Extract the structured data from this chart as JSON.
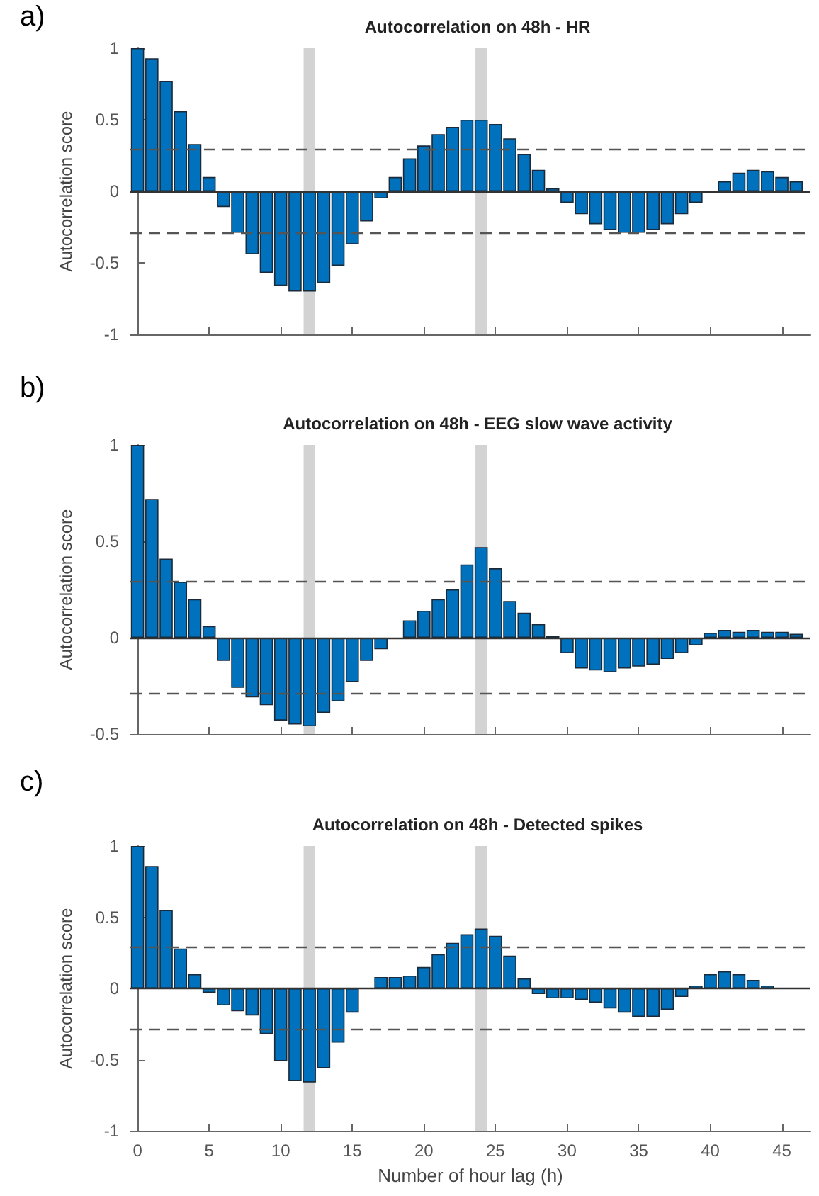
{
  "chart_data": [
    {
      "type": "bar",
      "title": "Autocorrelation on 48h - HR",
      "ylabel": "Autocorrelation score",
      "annotations": [
        "a)"
      ],
      "color": "#0072bd",
      "tick_labels": "y",
      "x": [
        0,
        1,
        2,
        3,
        4,
        5,
        6,
        7,
        8,
        9,
        10,
        11,
        12,
        13,
        14,
        15,
        16,
        17,
        18,
        19,
        20,
        21,
        22,
        23,
        24,
        25,
        26,
        27,
        28,
        29,
        30,
        31,
        32,
        33,
        34,
        35,
        36,
        37,
        38,
        39,
        40,
        41,
        42,
        43,
        44,
        45,
        46
      ],
      "values": [
        1.0,
        0.93,
        0.77,
        0.56,
        0.33,
        0.1,
        -0.11,
        -0.29,
        -0.44,
        -0.57,
        -0.66,
        -0.7,
        -0.7,
        -0.64,
        -0.52,
        -0.37,
        -0.21,
        -0.05,
        0.1,
        0.23,
        0.32,
        0.4,
        0.45,
        0.5,
        0.5,
        0.47,
        0.37,
        0.26,
        0.15,
        0.02,
        -0.08,
        -0.16,
        -0.23,
        -0.27,
        -0.29,
        -0.29,
        -0.27,
        -0.23,
        -0.16,
        -0.08,
        0,
        0.07,
        0.13,
        0.15,
        0.14,
        0.1,
        0.07
      ],
      "xlim": [
        -0.5,
        47
      ],
      "xticks": [
        0,
        5,
        10,
        15,
        20,
        25,
        30,
        35,
        40,
        45
      ],
      "ylim": [
        -1,
        1
      ],
      "yticks": [
        -1,
        -0.5,
        0,
        0.5,
        1
      ],
      "ref_lines": [
        {
          "axis": "y",
          "value": 0,
          "line_style": "solid",
          "color": "#333333"
        },
        {
          "axis": "y",
          "value": 0.29,
          "line_style": "dashed",
          "color": "#555555"
        },
        {
          "axis": "y",
          "value": -0.29,
          "line_style": "dashed",
          "color": "#555555"
        }
      ],
      "bands": [
        {
          "axis": "x",
          "from": 11.6,
          "to": 12.4,
          "color": "#d3d3d3"
        },
        {
          "axis": "x",
          "from": 23.6,
          "to": 24.4,
          "color": "#d3d3d3"
        }
      ]
    },
    {
      "type": "bar",
      "title": "Autocorrelation on 48h - EEG slow wave activity",
      "ylabel": "Autocorrelation score",
      "annotations": [
        "b)"
      ],
      "color": "#0072bd",
      "tick_labels": "y",
      "x": [
        0,
        1,
        2,
        3,
        4,
        5,
        6,
        7,
        8,
        9,
        10,
        11,
        12,
        13,
        14,
        15,
        16,
        17,
        18,
        19,
        20,
        21,
        22,
        23,
        24,
        25,
        26,
        27,
        28,
        29,
        30,
        31,
        32,
        33,
        34,
        35,
        36,
        37,
        38,
        39,
        40,
        41,
        42,
        43,
        44,
        45,
        46
      ],
      "values": [
        1.0,
        0.72,
        0.41,
        0.29,
        0.2,
        0.06,
        -0.12,
        -0.26,
        -0.31,
        -0.35,
        -0.43,
        -0.45,
        -0.46,
        -0.39,
        -0.33,
        -0.23,
        -0.12,
        -0.06,
        0,
        0.09,
        0.14,
        0.2,
        0.25,
        0.38,
        0.47,
        0.36,
        0.19,
        0.13,
        0.07,
        0.01,
        -0.08,
        -0.16,
        -0.17,
        -0.18,
        -0.16,
        -0.15,
        -0.14,
        -0.11,
        -0.08,
        -0.04,
        0.025,
        0.04,
        0.03,
        0.04,
        0.03,
        0.03,
        0.02
      ],
      "xlim": [
        -0.5,
        47
      ],
      "xticks": [
        0,
        5,
        10,
        15,
        20,
        25,
        30,
        35,
        40,
        45
      ],
      "ylim": [
        -0.5,
        1
      ],
      "yticks": [
        -0.5,
        0,
        0.5,
        1
      ],
      "ref_lines": [
        {
          "axis": "y",
          "value": 0,
          "line_style": "solid",
          "color": "#333333"
        },
        {
          "axis": "y",
          "value": 0.29,
          "line_style": "dashed",
          "color": "#555555"
        },
        {
          "axis": "y",
          "value": -0.29,
          "line_style": "dashed",
          "color": "#555555"
        }
      ],
      "bands": [
        {
          "axis": "x",
          "from": 11.6,
          "to": 12.4,
          "color": "#d3d3d3"
        },
        {
          "axis": "x",
          "from": 23.6,
          "to": 24.4,
          "color": "#d3d3d3"
        }
      ]
    },
    {
      "type": "bar",
      "title": "Autocorrelation on 48h - Detected spikes",
      "ylabel": "Autocorrelation score",
      "xlabel": "Number of hour lag (h)",
      "annotations": [
        "c)"
      ],
      "color": "#0072bd",
      "x": [
        0,
        1,
        2,
        3,
        4,
        5,
        6,
        7,
        8,
        9,
        10,
        11,
        12,
        13,
        14,
        15,
        16,
        17,
        18,
        19,
        20,
        21,
        22,
        23,
        24,
        25,
        26,
        27,
        28,
        29,
        30,
        31,
        32,
        33,
        34,
        35,
        36,
        37,
        38,
        39,
        40,
        41,
        42,
        43,
        44,
        45,
        46
      ],
      "values": [
        1.0,
        0.86,
        0.55,
        0.28,
        0.1,
        -0.03,
        -0.12,
        -0.16,
        -0.19,
        -0.32,
        -0.51,
        -0.65,
        -0.66,
        -0.56,
        -0.38,
        -0.17,
        0,
        0.08,
        0.08,
        0.09,
        0.15,
        0.24,
        0.32,
        0.38,
        0.42,
        0.37,
        0.23,
        0.07,
        -0.04,
        -0.07,
        -0.07,
        -0.08,
        -0.1,
        -0.14,
        -0.17,
        -0.2,
        -0.2,
        -0.15,
        -0.06,
        0.02,
        0.1,
        0.12,
        0.1,
        0.06,
        0.02,
        0,
        0
      ],
      "xlim": [
        -0.5,
        47
      ],
      "xticks": [
        0,
        5,
        10,
        15,
        20,
        25,
        30,
        35,
        40,
        45
      ],
      "ylim": [
        -1,
        1
      ],
      "yticks": [
        -1,
        -0.5,
        0,
        0.5,
        1
      ],
      "ref_lines": [
        {
          "axis": "y",
          "value": 0,
          "line_style": "solid",
          "color": "#333333"
        },
        {
          "axis": "y",
          "value": 0.29,
          "line_style": "dashed",
          "color": "#555555"
        },
        {
          "axis": "y",
          "value": -0.29,
          "line_style": "dashed",
          "color": "#555555"
        }
      ],
      "bands": [
        {
          "axis": "x",
          "from": 11.6,
          "to": 12.4,
          "color": "#d3d3d3"
        },
        {
          "axis": "x",
          "from": 23.6,
          "to": 24.4,
          "color": "#d3d3d3"
        }
      ]
    }
  ]
}
